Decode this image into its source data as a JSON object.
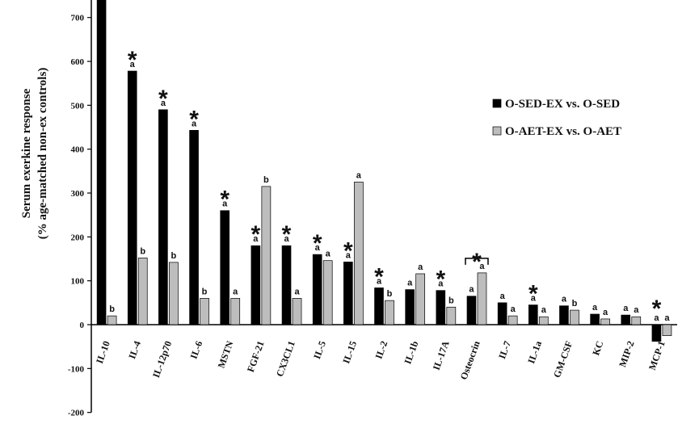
{
  "chart_data": {
    "type": "bar",
    "ylabel_line1": "Serum exerkine response",
    "ylabel_line2": "(% age-matched non-ex controls)",
    "ylim": [
      -200,
      750
    ],
    "yticks": [
      -200,
      -100,
      0,
      100,
      200,
      300,
      400,
      500,
      600,
      700
    ],
    "categories": [
      "IL-10",
      "IL-4",
      "IL-12p70",
      "IL-6",
      "MSTN",
      "FGF-21",
      "CX3CL1",
      "IL-5",
      "IL-15",
      "IL-2",
      "IL-1b",
      "IL-17A",
      "Osteocrin",
      "IL-7",
      "IL-1a",
      "GM-CSF",
      "KC",
      "MIP-2",
      "MCP-1"
    ],
    "series": [
      {
        "name": "O-SED-EX vs. O-SED",
        "color": "#000000",
        "values": [
          760,
          578,
          490,
          443,
          260,
          180,
          180,
          160,
          143,
          84,
          80,
          78,
          65,
          50,
          45,
          43,
          24,
          22,
          -38
        ],
        "letters": [
          "",
          "a",
          "a",
          "a",
          "a",
          "a",
          "a",
          "a",
          "a",
          "a",
          "a",
          "a",
          "a",
          "a",
          "a",
          "a",
          "a",
          "a",
          "a"
        ]
      },
      {
        "name": "O-AET-EX vs. O-AET",
        "color": "#bdbdbd",
        "values": [
          20,
          152,
          142,
          60,
          60,
          315,
          60,
          146,
          325,
          55,
          116,
          40,
          118,
          20,
          18,
          33,
          13,
          18,
          -25
        ],
        "letters": [
          "b",
          "b",
          "b",
          "b",
          "a",
          "b",
          "a",
          "a",
          "a",
          "b",
          "a",
          "b",
          "a",
          "a",
          "a",
          "b",
          "a",
          "a",
          "a"
        ]
      }
    ],
    "significant": [
      false,
      true,
      true,
      true,
      true,
      true,
      true,
      true,
      true,
      true,
      false,
      true,
      true,
      false,
      true,
      false,
      false,
      false,
      true
    ],
    "star_symbol": "*",
    "legend": {
      "position": "right"
    }
  }
}
